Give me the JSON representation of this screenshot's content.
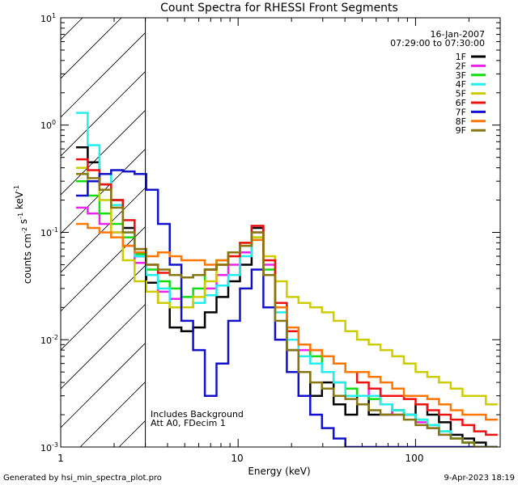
{
  "chart_data": {
    "type": "line",
    "title": "Count Spectra for RHESSI Front Segments",
    "xlabel": "Energy (keV)",
    "ylabel": "counts cm-2 s-1 keV-1",
    "xscale": "log",
    "yscale": "log",
    "xlim": [
      1,
      300
    ],
    "ylim": [
      0.001,
      10
    ],
    "x_tick_labels": [
      "1",
      "10",
      "100"
    ],
    "y_tick_labels": [
      "10-3",
      "10-2",
      "10-1",
      "100",
      "101"
    ],
    "hatched_region_end_keV": 3,
    "date": "16-Jan-2007",
    "time_range": "07:29:00 to 07:30:00",
    "annotation_lines": [
      "Includes Background",
      "Att A0, FDecim 1"
    ],
    "footer_left": "Generated by hsi_min_spectra_plot.pro",
    "footer_right": "9-Apr-2023 18:19",
    "legend_position": "top-right",
    "series": [
      {
        "name": "1F",
        "color": "#000000",
        "values": [
          0.62,
          0.45,
          0.28,
          0.2,
          0.11,
          0.06,
          0.034,
          0.022,
          0.013,
          0.012,
          0.013,
          0.018,
          0.025,
          0.035,
          0.05,
          0.11,
          0.04,
          0.02,
          0.008,
          0.005,
          0.003,
          0.004,
          0.0025,
          0.002,
          0.003,
          0.002,
          0.002,
          0.0022,
          0.002,
          0.0025,
          0.002,
          0.0017,
          0.0013,
          0.0012,
          0.0011,
          0.001
        ]
      },
      {
        "name": "2F",
        "color": "#ee22ee",
        "values": [
          0.17,
          0.15,
          0.12,
          0.1,
          0.075,
          0.052,
          0.04,
          0.028,
          0.024,
          0.02,
          0.022,
          0.03,
          0.04,
          0.05,
          0.065,
          0.1,
          0.05,
          0.02,
          0.012,
          0.008,
          0.006,
          0.005,
          0.004,
          0.0035,
          0.003,
          0.0035,
          0.0025,
          0.002,
          0.002,
          0.0017,
          0.0015,
          0.0013,
          0.0012,
          0.0011,
          0.001,
          0.001
        ]
      },
      {
        "name": "3F",
        "color": "#11dd11",
        "values": [
          0.3,
          0.22,
          0.15,
          0.12,
          0.09,
          0.063,
          0.045,
          0.035,
          0.03,
          0.025,
          0.03,
          0.045,
          0.055,
          0.065,
          0.08,
          0.09,
          0.045,
          0.02,
          0.012,
          0.009,
          0.007,
          0.005,
          0.004,
          0.0035,
          0.003,
          0.0028,
          0.0025,
          0.0022,
          0.002,
          0.0018,
          0.0016,
          0.0014,
          0.0012,
          0.0011,
          0.001,
          0.001
        ]
      },
      {
        "name": "4F",
        "color": "#22eeee",
        "values": [
          1.3,
          0.65,
          0.35,
          0.18,
          0.1,
          0.06,
          0.04,
          0.03,
          0.02,
          0.02,
          0.022,
          0.026,
          0.032,
          0.04,
          0.06,
          0.085,
          0.04,
          0.018,
          0.01,
          0.007,
          0.006,
          0.005,
          0.004,
          0.003,
          0.003,
          0.003,
          0.0025,
          0.0022,
          0.002,
          0.0018,
          0.0016,
          0.0014,
          0.0012,
          0.0011,
          0.001,
          0.001
        ]
      },
      {
        "name": "5F",
        "color": "#cccc00",
        "values": [
          0.4,
          0.3,
          0.2,
          0.1,
          0.055,
          0.035,
          0.028,
          0.022,
          0.02,
          0.02,
          0.025,
          0.035,
          0.05,
          0.06,
          0.08,
          0.09,
          0.06,
          0.035,
          0.025,
          0.022,
          0.02,
          0.018,
          0.015,
          0.012,
          0.01,
          0.009,
          0.008,
          0.007,
          0.006,
          0.005,
          0.0045,
          0.004,
          0.0035,
          0.003,
          0.003,
          0.0025
        ]
      },
      {
        "name": "6F",
        "color": "#ee1111",
        "values": [
          0.48,
          0.38,
          0.28,
          0.2,
          0.13,
          0.07,
          0.05,
          0.042,
          0.04,
          0.038,
          0.04,
          0.045,
          0.05,
          0.06,
          0.08,
          0.115,
          0.055,
          0.022,
          0.012,
          0.009,
          0.008,
          0.007,
          0.006,
          0.005,
          0.004,
          0.0035,
          0.003,
          0.003,
          0.0028,
          0.0025,
          0.0022,
          0.002,
          0.0018,
          0.0016,
          0.0014,
          0.0013
        ]
      },
      {
        "name": "7F",
        "color": "#1111cc",
        "values": [
          0.22,
          0.3,
          0.35,
          0.38,
          0.37,
          0.35,
          0.25,
          0.12,
          0.05,
          0.015,
          0.008,
          0.003,
          0.006,
          0.015,
          0.03,
          0.045,
          0.02,
          0.01,
          0.005,
          0.003,
          0.002,
          0.0015,
          0.0012,
          0.001,
          0.001,
          0.001,
          0.001,
          0.001,
          0.001,
          0.001,
          0.001,
          0.001,
          0.001,
          0.001,
          0.001,
          0.001
        ]
      },
      {
        "name": "8F",
        "color": "#ff7700",
        "values": [
          0.12,
          0.11,
          0.1,
          0.09,
          0.075,
          0.065,
          0.06,
          0.065,
          0.06,
          0.055,
          0.055,
          0.05,
          0.055,
          0.065,
          0.075,
          0.085,
          0.04,
          0.02,
          0.013,
          0.009,
          0.008,
          0.007,
          0.006,
          0.005,
          0.005,
          0.0045,
          0.004,
          0.0035,
          0.003,
          0.003,
          0.0028,
          0.0025,
          0.0022,
          0.002,
          0.002,
          0.0018
        ]
      },
      {
        "name": "9F",
        "color": "#887711",
        "values": [
          0.35,
          0.32,
          0.25,
          0.17,
          0.1,
          0.07,
          0.05,
          0.045,
          0.04,
          0.038,
          0.04,
          0.045,
          0.05,
          0.065,
          0.075,
          0.1,
          0.04,
          0.015,
          0.008,
          0.005,
          0.004,
          0.0035,
          0.003,
          0.0028,
          0.0025,
          0.0022,
          0.002,
          0.002,
          0.0018,
          0.0016,
          0.0015,
          0.0013,
          0.0012,
          0.0011,
          0.001,
          0.001
        ]
      }
    ]
  }
}
